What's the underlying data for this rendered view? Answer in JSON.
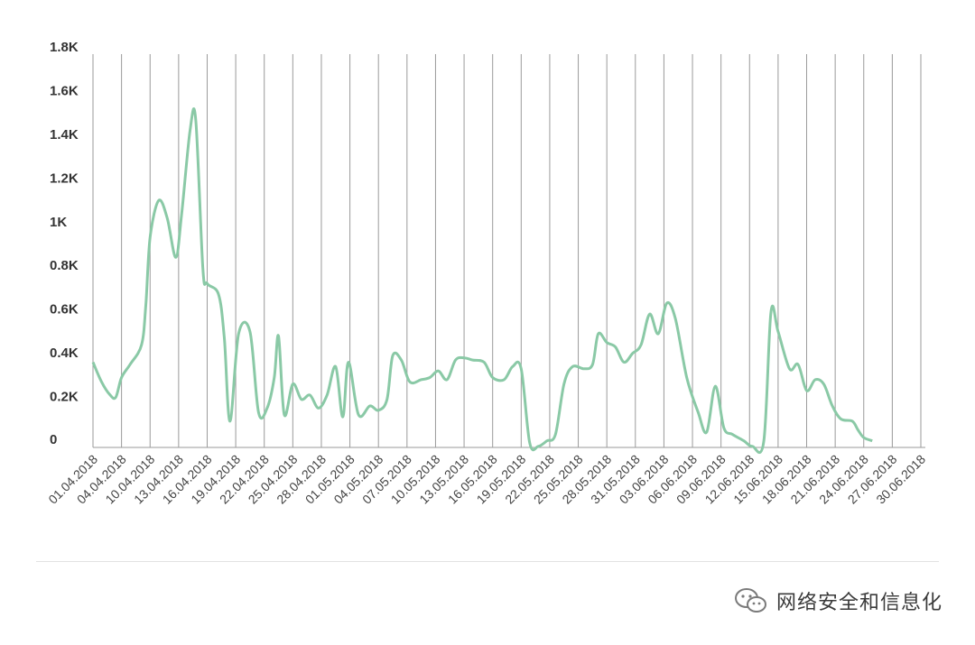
{
  "chart_data": {
    "type": "line",
    "title": "",
    "xlabel": "",
    "ylabel": "",
    "ylim": [
      0,
      1800
    ],
    "y_ticks": [
      0,
      200,
      400,
      600,
      800,
      1000,
      1200,
      1400,
      1600,
      1800
    ],
    "y_tick_labels": [
      "0",
      "0.2K",
      "0.4K",
      "0.6K",
      "0.8K",
      "1K",
      "1.2K",
      "1.4K",
      "1.6K",
      "1.8K"
    ],
    "x_tick_labels": [
      "01.04.2018",
      "04.04.2018",
      "10.04.2018",
      "13.04.2018",
      "16.04.2018",
      "19.04.2018",
      "22.04.2018",
      "25.04.2018",
      "28.04.2018",
      "01.05.2018",
      "04.05.2018",
      "07.05.2018",
      "10.05.2018",
      "13.05.2018",
      "16.05.2018",
      "19.05.2018",
      "22.05.2018",
      "25.05.2018",
      "28.05.2018",
      "31.05.2018",
      "03.06.2018",
      "06.06.2018",
      "09.06.2018",
      "12.06.2018",
      "15.06.2018",
      "18.06.2018",
      "21.06.2018",
      "24.06.2018",
      "27.06.2018",
      "30.06.2018"
    ],
    "grid": "vertical",
    "line_color": "#8ac9a6",
    "series": [
      {
        "values": [
          [
            0.0,
            390
          ],
          [
            0.3,
            300
          ],
          [
            0.6,
            240
          ],
          [
            0.8,
            230
          ],
          [
            1.0,
            320
          ],
          [
            1.3,
            380
          ],
          [
            1.7,
            470
          ],
          [
            1.85,
            650
          ],
          [
            2.0,
            960
          ],
          [
            2.3,
            1130
          ],
          [
            2.6,
            1050
          ],
          [
            2.9,
            870
          ],
          [
            3.1,
            1060
          ],
          [
            3.4,
            1450
          ],
          [
            3.6,
            1500
          ],
          [
            3.85,
            820
          ],
          [
            4.0,
            750
          ],
          [
            4.4,
            700
          ],
          [
            4.6,
            500
          ],
          [
            4.8,
            120
          ],
          [
            5.1,
            520
          ],
          [
            5.5,
            530
          ],
          [
            5.8,
            160
          ],
          [
            6.1,
            180
          ],
          [
            6.35,
            320
          ],
          [
            6.5,
            510
          ],
          [
            6.7,
            150
          ],
          [
            7.0,
            290
          ],
          [
            7.3,
            220
          ],
          [
            7.6,
            240
          ],
          [
            7.9,
            180
          ],
          [
            8.2,
            240
          ],
          [
            8.5,
            370
          ],
          [
            8.75,
            140
          ],
          [
            8.95,
            390
          ],
          [
            9.3,
            150
          ],
          [
            9.7,
            190
          ],
          [
            10.0,
            170
          ],
          [
            10.3,
            220
          ],
          [
            10.5,
            420
          ],
          [
            10.8,
            400
          ],
          [
            11.1,
            300
          ],
          [
            11.5,
            310
          ],
          [
            11.8,
            320
          ],
          [
            12.1,
            350
          ],
          [
            12.4,
            310
          ],
          [
            12.7,
            400
          ],
          [
            13.0,
            410
          ],
          [
            13.3,
            400
          ],
          [
            13.7,
            390
          ],
          [
            14.0,
            320
          ],
          [
            14.4,
            310
          ],
          [
            14.7,
            370
          ],
          [
            15.0,
            360
          ],
          [
            15.3,
            20
          ],
          [
            15.6,
            5
          ],
          [
            15.9,
            30
          ],
          [
            16.2,
            60
          ],
          [
            16.5,
            290
          ],
          [
            16.8,
            370
          ],
          [
            17.2,
            360
          ],
          [
            17.5,
            380
          ],
          [
            17.7,
            520
          ],
          [
            18.0,
            480
          ],
          [
            18.3,
            460
          ],
          [
            18.6,
            390
          ],
          [
            18.9,
            430
          ],
          [
            19.2,
            470
          ],
          [
            19.5,
            610
          ],
          [
            19.8,
            520
          ],
          [
            20.1,
            660
          ],
          [
            20.4,
            590
          ],
          [
            20.8,
            320
          ],
          [
            21.2,
            160
          ],
          [
            21.5,
            70
          ],
          [
            21.8,
            280
          ],
          [
            22.1,
            90
          ],
          [
            22.4,
            60
          ],
          [
            22.8,
            30
          ],
          [
            23.1,
            5
          ],
          [
            23.5,
            30
          ],
          [
            23.75,
            620
          ],
          [
            24.0,
            530
          ],
          [
            24.4,
            360
          ],
          [
            24.7,
            380
          ],
          [
            25.0,
            260
          ],
          [
            25.3,
            310
          ],
          [
            25.6,
            290
          ],
          [
            25.9,
            190
          ],
          [
            26.2,
            130
          ],
          [
            26.6,
            120
          ],
          [
            26.8,
            80
          ],
          [
            27.0,
            45
          ],
          [
            27.3,
            30
          ]
        ]
      }
    ]
  },
  "watermark": {
    "text": "网络安全和信息化",
    "icon": "wechat-icon"
  }
}
